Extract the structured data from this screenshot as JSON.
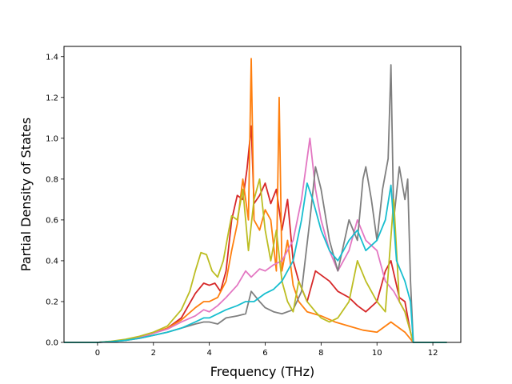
{
  "chart_data": {
    "type": "line",
    "title": "",
    "xlabel": "Frequency (THz)",
    "ylabel": "Partial Density of States",
    "xlim": [
      -1.2,
      13.0
    ],
    "ylim": [
      0.0,
      1.45
    ],
    "xticks": [
      0,
      2,
      4,
      6,
      8,
      10,
      12
    ],
    "yticks": [
      0.0,
      0.2,
      0.4,
      0.6,
      0.8,
      1.0,
      1.2,
      1.4
    ],
    "xtick_labels": [
      "0",
      "2",
      "4",
      "6",
      "8",
      "10",
      "12"
    ],
    "ytick_labels": [
      "0.0",
      "0.2",
      "0.4",
      "0.6",
      "0.8",
      "1.0",
      "1.2",
      "1.4"
    ],
    "grid": false,
    "legend": "none",
    "series": [
      {
        "color": "#d62728",
        "points": [
          [
            -1.2,
            0
          ],
          [
            0,
            0
          ],
          [
            0.5,
            0.005
          ],
          [
            1,
            0.012
          ],
          [
            1.5,
            0.025
          ],
          [
            2,
            0.045
          ],
          [
            2.5,
            0.07
          ],
          [
            3,
            0.12
          ],
          [
            3.5,
            0.24
          ],
          [
            3.8,
            0.29
          ],
          [
            4,
            0.28
          ],
          [
            4.2,
            0.29
          ],
          [
            4.4,
            0.25
          ],
          [
            4.6,
            0.35
          ],
          [
            4.8,
            0.6
          ],
          [
            5,
            0.72
          ],
          [
            5.2,
            0.7
          ],
          [
            5.35,
            0.85
          ],
          [
            5.5,
            1.06
          ],
          [
            5.6,
            0.68
          ],
          [
            5.8,
            0.72
          ],
          [
            6,
            0.78
          ],
          [
            6.2,
            0.68
          ],
          [
            6.4,
            0.75
          ],
          [
            6.6,
            0.55
          ],
          [
            6.8,
            0.7
          ],
          [
            7,
            0.4
          ],
          [
            7.2,
            0.3
          ],
          [
            7.5,
            0.2
          ],
          [
            7.8,
            0.35
          ],
          [
            8,
            0.33
          ],
          [
            8.3,
            0.3
          ],
          [
            8.6,
            0.25
          ],
          [
            9,
            0.22
          ],
          [
            9.3,
            0.18
          ],
          [
            9.6,
            0.15
          ],
          [
            10,
            0.2
          ],
          [
            10.3,
            0.35
          ],
          [
            10.5,
            0.4
          ],
          [
            10.8,
            0.22
          ],
          [
            11,
            0.2
          ],
          [
            11.2,
            0.05
          ],
          [
            11.3,
            0
          ],
          [
            12.5,
            0
          ]
        ]
      },
      {
        "color": "#ff7f0e",
        "points": [
          [
            -1.2,
            0
          ],
          [
            0,
            0
          ],
          [
            0.5,
            0.005
          ],
          [
            1,
            0.012
          ],
          [
            1.5,
            0.025
          ],
          [
            2,
            0.045
          ],
          [
            2.5,
            0.07
          ],
          [
            3,
            0.11
          ],
          [
            3.5,
            0.17
          ],
          [
            3.8,
            0.2
          ],
          [
            4,
            0.2
          ],
          [
            4.3,
            0.22
          ],
          [
            4.6,
            0.3
          ],
          [
            4.8,
            0.45
          ],
          [
            5,
            0.58
          ],
          [
            5.2,
            0.8
          ],
          [
            5.4,
            0.6
          ],
          [
            5.5,
            1.39
          ],
          [
            5.6,
            0.6
          ],
          [
            5.8,
            0.55
          ],
          [
            6,
            0.65
          ],
          [
            6.2,
            0.6
          ],
          [
            6.4,
            0.35
          ],
          [
            6.5,
            1.2
          ],
          [
            6.6,
            0.35
          ],
          [
            6.8,
            0.5
          ],
          [
            7,
            0.28
          ],
          [
            7.2,
            0.2
          ],
          [
            7.5,
            0.15
          ],
          [
            8,
            0.13
          ],
          [
            8.5,
            0.1
          ],
          [
            9,
            0.08
          ],
          [
            9.5,
            0.06
          ],
          [
            10,
            0.05
          ],
          [
            10.5,
            0.1
          ],
          [
            11,
            0.05
          ],
          [
            11.3,
            0
          ],
          [
            12.5,
            0
          ]
        ]
      },
      {
        "color": "#e377c2",
        "points": [
          [
            -1.2,
            0
          ],
          [
            0,
            0
          ],
          [
            0.5,
            0.005
          ],
          [
            1,
            0.012
          ],
          [
            1.5,
            0.025
          ],
          [
            2,
            0.045
          ],
          [
            2.5,
            0.065
          ],
          [
            3,
            0.1
          ],
          [
            3.5,
            0.13
          ],
          [
            3.8,
            0.16
          ],
          [
            4,
            0.15
          ],
          [
            4.3,
            0.18
          ],
          [
            4.6,
            0.22
          ],
          [
            5,
            0.28
          ],
          [
            5.3,
            0.35
          ],
          [
            5.5,
            0.32
          ],
          [
            5.8,
            0.36
          ],
          [
            6,
            0.35
          ],
          [
            6.3,
            0.38
          ],
          [
            6.6,
            0.4
          ],
          [
            7,
            0.5
          ],
          [
            7.3,
            0.7
          ],
          [
            7.6,
            1.0
          ],
          [
            7.8,
            0.75
          ],
          [
            8,
            0.6
          ],
          [
            8.3,
            0.45
          ],
          [
            8.6,
            0.35
          ],
          [
            9,
            0.45
          ],
          [
            9.3,
            0.6
          ],
          [
            9.6,
            0.5
          ],
          [
            10,
            0.45
          ],
          [
            10.3,
            0.3
          ],
          [
            10.6,
            0.25
          ],
          [
            11,
            0.15
          ],
          [
            11.3,
            0
          ],
          [
            12.5,
            0
          ]
        ]
      },
      {
        "color": "#7f7f7f",
        "points": [
          [
            -1.2,
            0
          ],
          [
            0,
            0
          ],
          [
            0.5,
            0.004
          ],
          [
            1,
            0.01
          ],
          [
            1.5,
            0.02
          ],
          [
            2,
            0.035
          ],
          [
            2.5,
            0.05
          ],
          [
            3,
            0.07
          ],
          [
            3.5,
            0.09
          ],
          [
            3.8,
            0.1
          ],
          [
            4,
            0.1
          ],
          [
            4.3,
            0.09
          ],
          [
            4.6,
            0.12
          ],
          [
            5,
            0.13
          ],
          [
            5.3,
            0.14
          ],
          [
            5.5,
            0.25
          ],
          [
            5.8,
            0.2
          ],
          [
            6,
            0.17
          ],
          [
            6.3,
            0.15
          ],
          [
            6.6,
            0.14
          ],
          [
            7,
            0.16
          ],
          [
            7.3,
            0.25
          ],
          [
            7.6,
            0.6
          ],
          [
            7.8,
            0.86
          ],
          [
            8,
            0.75
          ],
          [
            8.3,
            0.5
          ],
          [
            8.6,
            0.35
          ],
          [
            9,
            0.6
          ],
          [
            9.3,
            0.5
          ],
          [
            9.5,
            0.8
          ],
          [
            9.6,
            0.86
          ],
          [
            9.8,
            0.7
          ],
          [
            10,
            0.5
          ],
          [
            10.2,
            0.75
          ],
          [
            10.4,
            0.9
          ],
          [
            10.5,
            1.36
          ],
          [
            10.6,
            0.6
          ],
          [
            10.8,
            0.86
          ],
          [
            11,
            0.7
          ],
          [
            11.1,
            0.8
          ],
          [
            11.2,
            0.3
          ],
          [
            11.3,
            0
          ],
          [
            12.5,
            0
          ]
        ]
      },
      {
        "color": "#bcbd22",
        "points": [
          [
            -1.2,
            0
          ],
          [
            0,
            0
          ],
          [
            0.5,
            0.006
          ],
          [
            1,
            0.015
          ],
          [
            1.5,
            0.03
          ],
          [
            2,
            0.05
          ],
          [
            2.5,
            0.08
          ],
          [
            3,
            0.16
          ],
          [
            3.3,
            0.25
          ],
          [
            3.5,
            0.35
          ],
          [
            3.7,
            0.44
          ],
          [
            3.9,
            0.43
          ],
          [
            4.1,
            0.35
          ],
          [
            4.3,
            0.32
          ],
          [
            4.5,
            0.4
          ],
          [
            4.7,
            0.55
          ],
          [
            4.8,
            0.62
          ],
          [
            5,
            0.6
          ],
          [
            5.2,
            0.75
          ],
          [
            5.4,
            0.45
          ],
          [
            5.6,
            0.7
          ],
          [
            5.8,
            0.8
          ],
          [
            6,
            0.55
          ],
          [
            6.2,
            0.4
          ],
          [
            6.4,
            0.55
          ],
          [
            6.6,
            0.3
          ],
          [
            6.8,
            0.2
          ],
          [
            7,
            0.15
          ],
          [
            7.2,
            0.3
          ],
          [
            7.5,
            0.2
          ],
          [
            7.8,
            0.15
          ],
          [
            8,
            0.12
          ],
          [
            8.3,
            0.1
          ],
          [
            8.6,
            0.12
          ],
          [
            9,
            0.2
          ],
          [
            9.3,
            0.4
          ],
          [
            9.6,
            0.3
          ],
          [
            10,
            0.2
          ],
          [
            10.3,
            0.15
          ],
          [
            10.6,
            0.7
          ],
          [
            10.8,
            0.2
          ],
          [
            11,
            0.15
          ],
          [
            11.3,
            0
          ],
          [
            12.5,
            0
          ]
        ]
      },
      {
        "color": "#17becf",
        "points": [
          [
            -1.2,
            0
          ],
          [
            0,
            0
          ],
          [
            0.5,
            0.004
          ],
          [
            1,
            0.01
          ],
          [
            1.5,
            0.02
          ],
          [
            2,
            0.035
          ],
          [
            2.5,
            0.05
          ],
          [
            3,
            0.07
          ],
          [
            3.5,
            0.1
          ],
          [
            3.8,
            0.12
          ],
          [
            4,
            0.12
          ],
          [
            4.3,
            0.14
          ],
          [
            4.6,
            0.16
          ],
          [
            5,
            0.18
          ],
          [
            5.3,
            0.2
          ],
          [
            5.6,
            0.2
          ],
          [
            6,
            0.24
          ],
          [
            6.3,
            0.26
          ],
          [
            6.6,
            0.3
          ],
          [
            7,
            0.4
          ],
          [
            7.3,
            0.6
          ],
          [
            7.5,
            0.78
          ],
          [
            7.7,
            0.7
          ],
          [
            8,
            0.55
          ],
          [
            8.3,
            0.45
          ],
          [
            8.6,
            0.4
          ],
          [
            9,
            0.5
          ],
          [
            9.3,
            0.55
          ],
          [
            9.6,
            0.45
          ],
          [
            10,
            0.5
          ],
          [
            10.3,
            0.6
          ],
          [
            10.5,
            0.77
          ],
          [
            10.7,
            0.4
          ],
          [
            11,
            0.3
          ],
          [
            11.2,
            0.2
          ],
          [
            11.3,
            0
          ],
          [
            12.5,
            0
          ]
        ]
      }
    ]
  }
}
